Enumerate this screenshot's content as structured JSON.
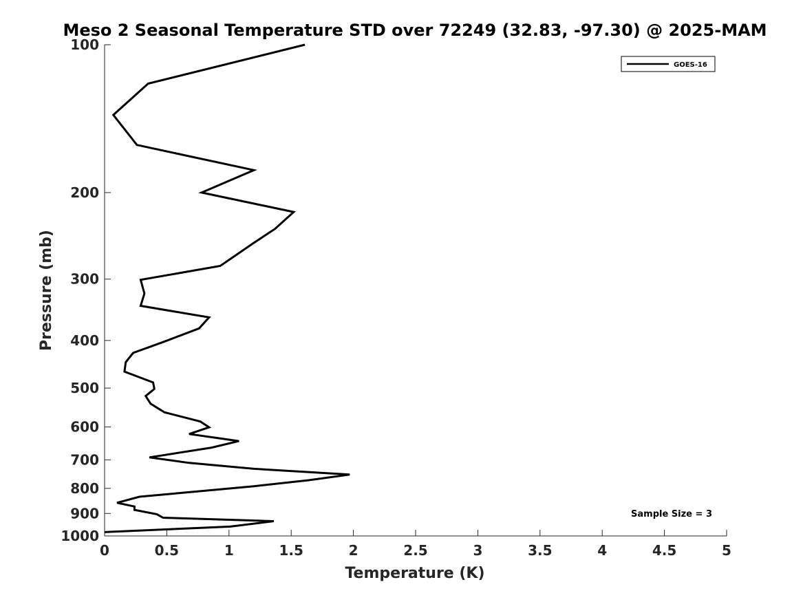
{
  "chart_data": {
    "type": "line",
    "title": "Meso 2 Seasonal Temperature STD over 72249 (32.83, -97.30) @ 2025-MAM",
    "xlabel": "Temperature (K)",
    "ylabel": "Pressure (mb)",
    "xlim": [
      0,
      5
    ],
    "ylim": [
      1000,
      100
    ],
    "y_scale": "log",
    "x_ticks": [
      0,
      0.5,
      1,
      1.5,
      2,
      2.5,
      3,
      3.5,
      4,
      4.5,
      5
    ],
    "x_tick_labels": [
      "0",
      "0.5",
      "1",
      "1.5",
      "2",
      "2.5",
      "3",
      "3.5",
      "4",
      "4.5",
      "5"
    ],
    "y_ticks": [
      100,
      200,
      300,
      400,
      500,
      600,
      700,
      800,
      900,
      1000
    ],
    "y_tick_labels": [
      "100",
      "200",
      "300",
      "400",
      "500",
      "600",
      "700",
      "800",
      "900",
      "1000"
    ],
    "legend": {
      "position": "top-right",
      "entries": [
        "GOES-16"
      ]
    },
    "annotation": "Sample Size = 3",
    "series": [
      {
        "name": "GOES-16",
        "color": "#000000",
        "points": [
          [
            1.61,
            100
          ],
          [
            0.35,
            120
          ],
          [
            0.07,
            139
          ],
          [
            0.26,
            160
          ],
          [
            1.2,
            180
          ],
          [
            0.78,
            200
          ],
          [
            1.52,
            219
          ],
          [
            1.37,
            237
          ],
          [
            1.19,
            254
          ],
          [
            0.93,
            282
          ],
          [
            0.29,
            301
          ],
          [
            0.32,
            321
          ],
          [
            0.29,
            340
          ],
          [
            0.84,
            359
          ],
          [
            0.76,
            378
          ],
          [
            0.47,
            403
          ],
          [
            0.23,
            424
          ],
          [
            0.17,
            443
          ],
          [
            0.16,
            463
          ],
          [
            0.39,
            487
          ],
          [
            0.4,
            502
          ],
          [
            0.33,
            519
          ],
          [
            0.37,
            538
          ],
          [
            0.48,
            560
          ],
          [
            0.77,
            585
          ],
          [
            0.84,
            601
          ],
          [
            0.68,
            620
          ],
          [
            1.08,
            641
          ],
          [
            0.86,
            661
          ],
          [
            0.36,
            692
          ],
          [
            0.68,
            710
          ],
          [
            1.2,
            730
          ],
          [
            1.97,
            750
          ],
          [
            1.64,
            770
          ],
          [
            1.2,
            792
          ],
          [
            0.74,
            812
          ],
          [
            0.28,
            832
          ],
          [
            0.1,
            856
          ],
          [
            0.24,
            871
          ],
          [
            0.24,
            885
          ],
          [
            0.42,
            903
          ],
          [
            0.47,
            918
          ],
          [
            1.36,
            933
          ],
          [
            1.01,
            957
          ],
          [
            0.0,
            982
          ]
        ]
      }
    ]
  }
}
